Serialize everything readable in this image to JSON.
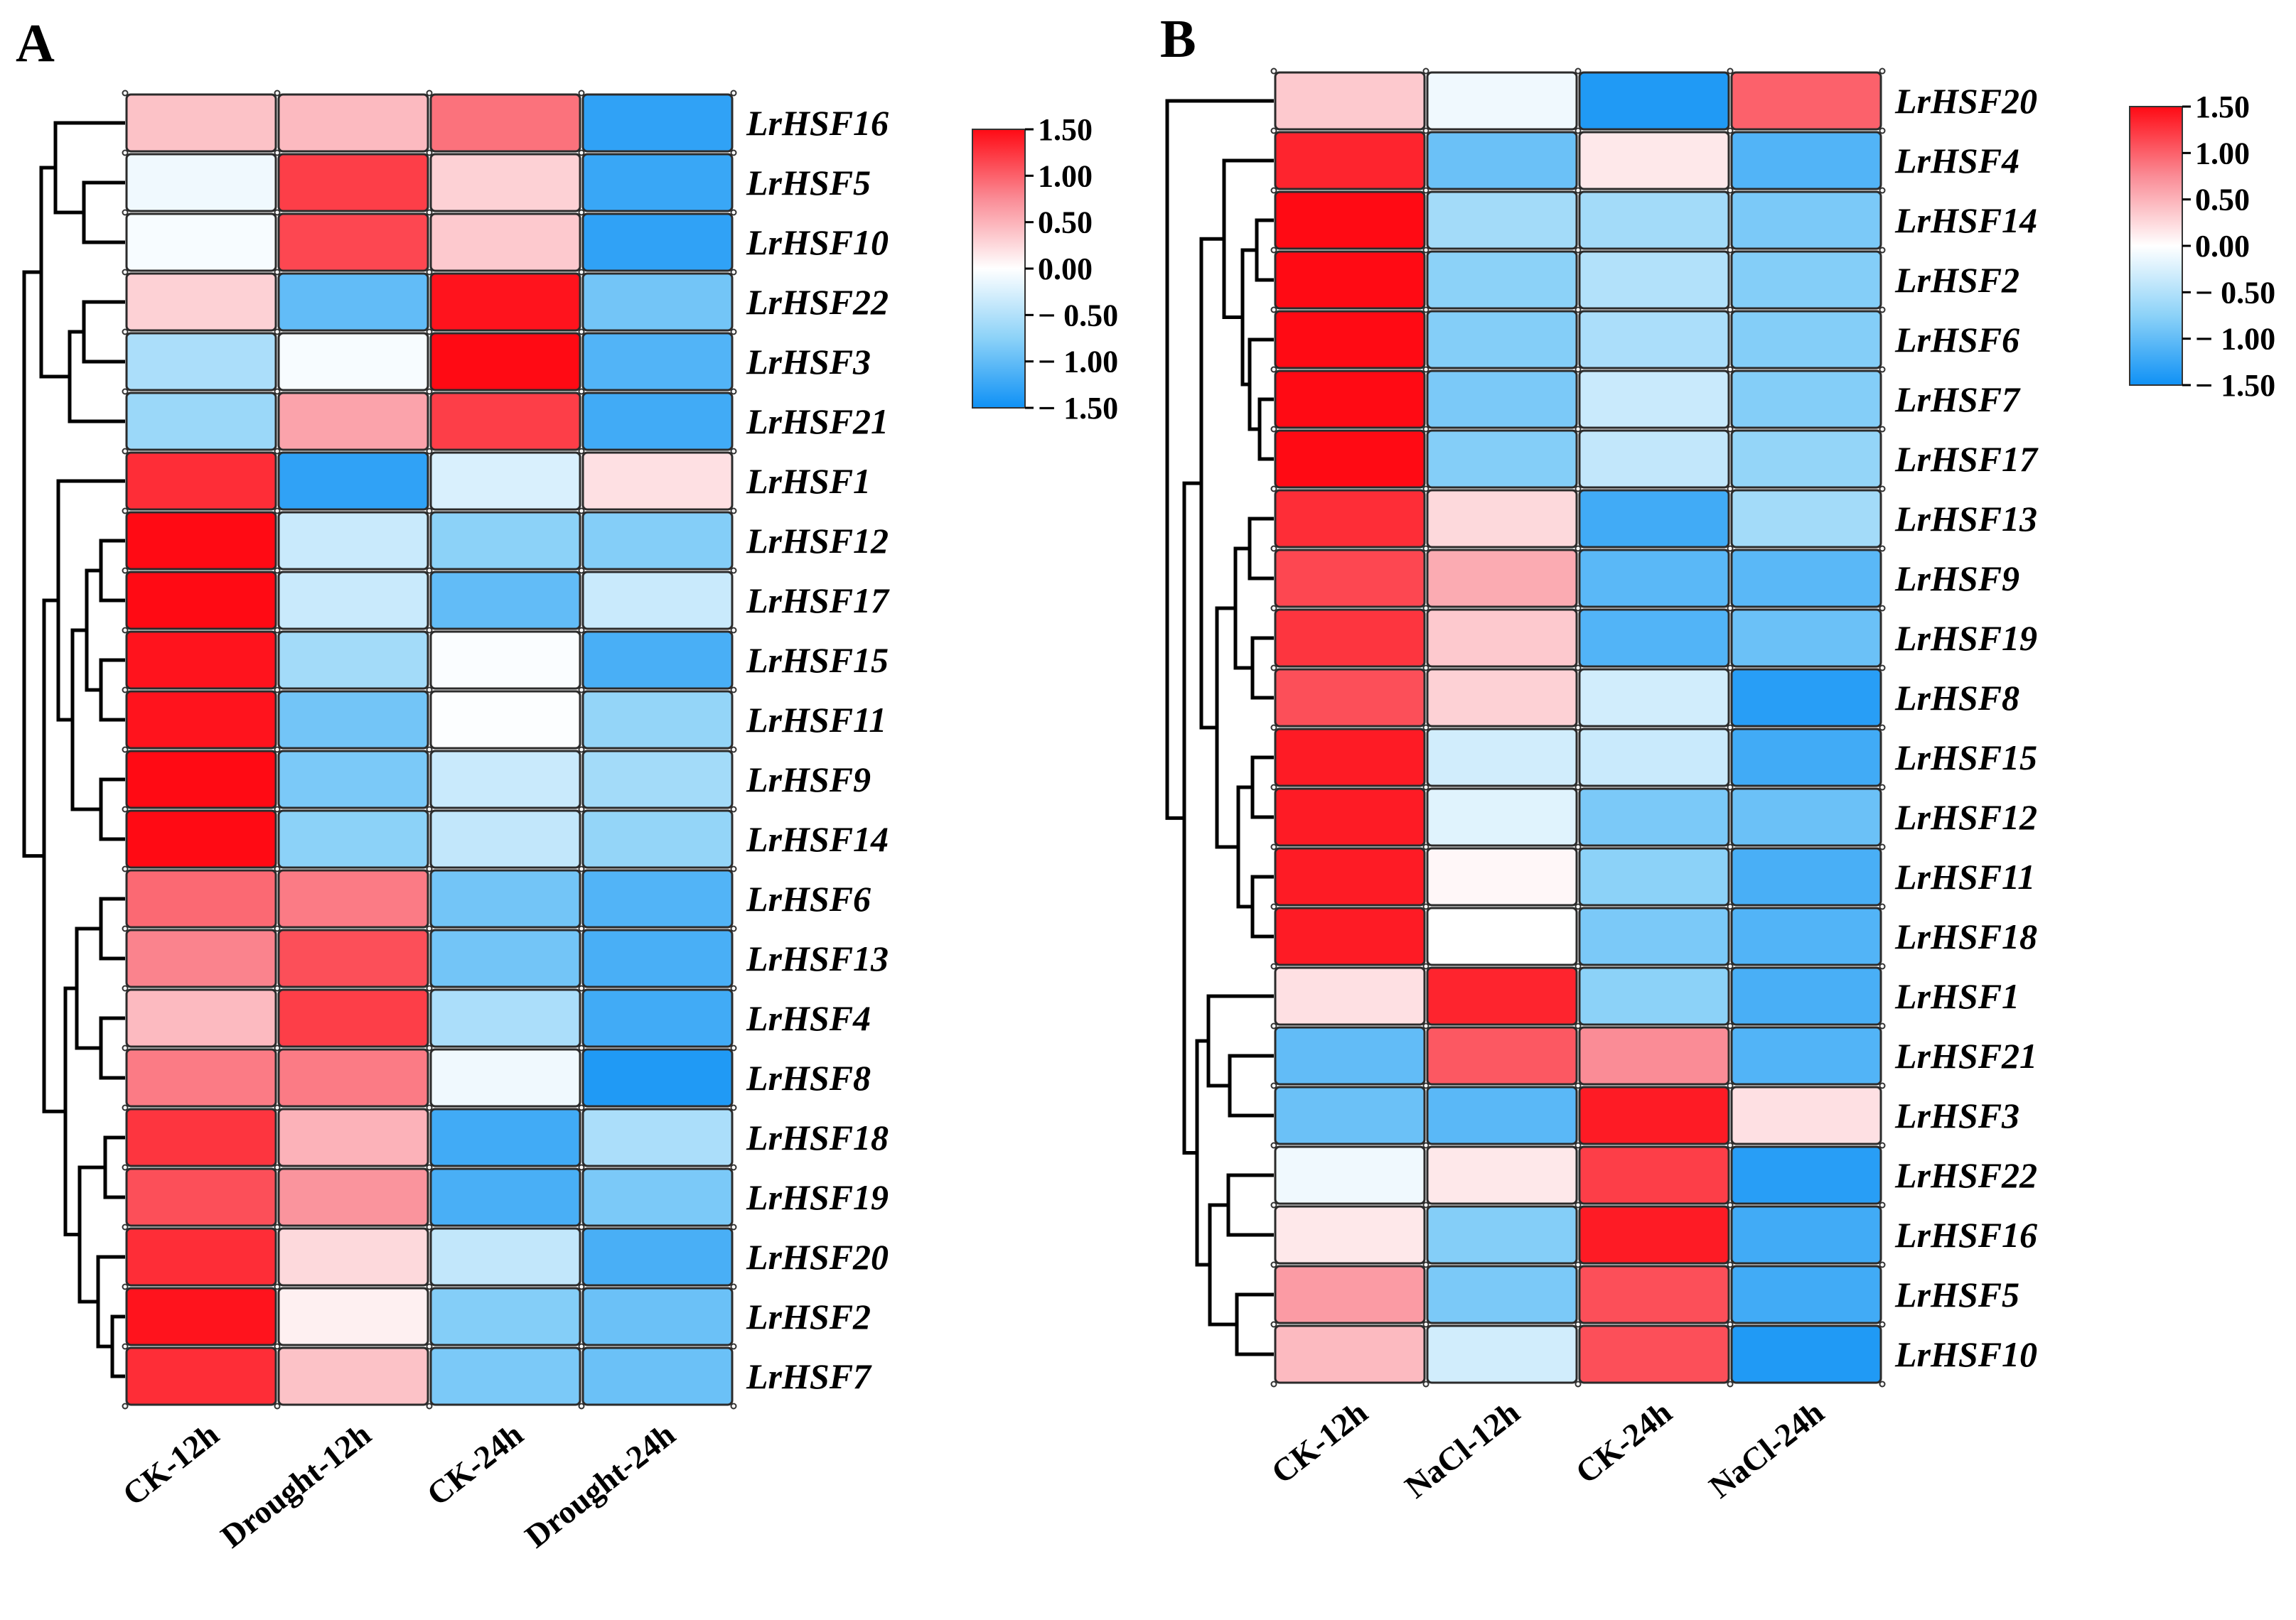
{
  "chart_data": [
    {
      "type": "heatmap",
      "panel_label": "A",
      "columns": [
        "CK-12h",
        "Drought-12h",
        "CK-24h",
        "Drought-24h"
      ],
      "rows": [
        "LrHSF16",
        "LrHSF5",
        "LrHSF10",
        "LrHSF22",
        "LrHSF3",
        "LrHSF21",
        "LrHSF1",
        "LrHSF12",
        "LrHSF17",
        "LrHSF15",
        "LrHSF11",
        "LrHSF9",
        "LrHSF14",
        "LrHSF6",
        "LrHSF13",
        "LrHSF4",
        "LrHSF8",
        "LrHSF18",
        "LrHSF19",
        "LrHSF20",
        "LrHSF2",
        "LrHSF7"
      ],
      "values": [
        [
          0.4,
          0.45,
          0.9,
          -1.3
        ],
        [
          -0.1,
          1.2,
          0.3,
          -1.25
        ],
        [
          -0.05,
          1.15,
          0.35,
          -1.3
        ],
        [
          0.3,
          -1.0,
          1.45,
          -0.9
        ],
        [
          -0.55,
          -0.05,
          1.5,
          -1.1
        ],
        [
          -0.65,
          0.6,
          1.2,
          -1.2
        ],
        [
          1.3,
          -1.3,
          -0.25,
          0.2
        ],
        [
          1.5,
          -0.35,
          -0.75,
          -0.8
        ],
        [
          1.5,
          -0.35,
          -1.0,
          -0.35
        ],
        [
          1.45,
          -0.6,
          -0.03,
          -1.15
        ],
        [
          1.45,
          -0.9,
          -0.02,
          -0.7
        ],
        [
          1.5,
          -0.85,
          -0.35,
          -0.6
        ],
        [
          1.5,
          -0.75,
          -0.4,
          -0.7
        ],
        [
          0.95,
          0.85,
          -0.9,
          -1.1
        ],
        [
          0.8,
          1.1,
          -0.9,
          -1.15
        ],
        [
          0.45,
          1.2,
          -0.55,
          -1.2
        ],
        [
          0.85,
          0.85,
          -0.1,
          -1.4
        ],
        [
          1.25,
          0.5,
          -1.2,
          -0.55
        ],
        [
          1.1,
          0.7,
          -1.15,
          -0.85
        ],
        [
          1.3,
          0.25,
          -0.4,
          -1.15
        ],
        [
          1.45,
          0.1,
          -0.8,
          -0.95
        ],
        [
          1.3,
          0.4,
          -0.85,
          -0.95
        ]
      ],
      "colorbar": {
        "ticks": [
          "1.50",
          "1.00",
          "0.50",
          "0.00",
          "− 0.50",
          "− 1.00",
          "− 1.50"
        ],
        "min": -1.5,
        "max": 1.5
      }
    },
    {
      "type": "heatmap",
      "panel_label": "B",
      "columns": [
        "CK-12h",
        "NaCl-12h",
        "CK-24h",
        "NaCl-24h"
      ],
      "rows": [
        "LrHSF20",
        "LrHSF4",
        "LrHSF14",
        "LrHSF2",
        "LrHSF6",
        "LrHSF7",
        "LrHSF17",
        "LrHSF13",
        "LrHSF9",
        "LrHSF19",
        "LrHSF8",
        "LrHSF15",
        "LrHSF12",
        "LrHSF11",
        "LrHSF18",
        "LrHSF1",
        "LrHSF21",
        "LrHSF3",
        "LrHSF22",
        "LrHSF16",
        "LrHSF5",
        "LrHSF10"
      ],
      "values": [
        [
          0.35,
          -0.1,
          -1.4,
          1.0
        ],
        [
          1.35,
          -0.95,
          0.15,
          -1.1
        ],
        [
          1.5,
          -0.6,
          -0.6,
          -0.85
        ],
        [
          1.5,
          -0.75,
          -0.5,
          -0.8
        ],
        [
          1.5,
          -0.8,
          -0.55,
          -0.8
        ],
        [
          1.5,
          -0.85,
          -0.35,
          -0.8
        ],
        [
          1.5,
          -0.8,
          -0.4,
          -0.7
        ],
        [
          1.3,
          0.25,
          -1.2,
          -0.6
        ],
        [
          1.15,
          0.55,
          -1.05,
          -1.05
        ],
        [
          1.25,
          0.35,
          -1.1,
          -0.95
        ],
        [
          1.1,
          0.3,
          -0.3,
          -1.35
        ],
        [
          1.4,
          -0.3,
          -0.35,
          -1.2
        ],
        [
          1.4,
          -0.2,
          -0.85,
          -0.95
        ],
        [
          1.4,
          0.05,
          -0.75,
          -1.15
        ],
        [
          1.4,
          0.0,
          -0.85,
          -1.1
        ],
        [
          0.2,
          1.35,
          -0.75,
          -1.15
        ],
        [
          -1.0,
          1.05,
          0.75,
          -1.1
        ],
        [
          -0.95,
          -1.05,
          1.4,
          0.2
        ],
        [
          -0.1,
          0.15,
          1.2,
          -1.35
        ],
        [
          0.15,
          -0.8,
          1.4,
          -1.2
        ],
        [
          0.65,
          -0.85,
          1.1,
          -1.2
        ],
        [
          0.45,
          -0.3,
          1.1,
          -1.4
        ]
      ],
      "colorbar": {
        "ticks": [
          "1.50",
          "1.00",
          "0.50",
          "0.00",
          "− 0.50",
          "− 1.00",
          "− 1.50"
        ],
        "min": -1.5,
        "max": 1.5
      }
    }
  ]
}
